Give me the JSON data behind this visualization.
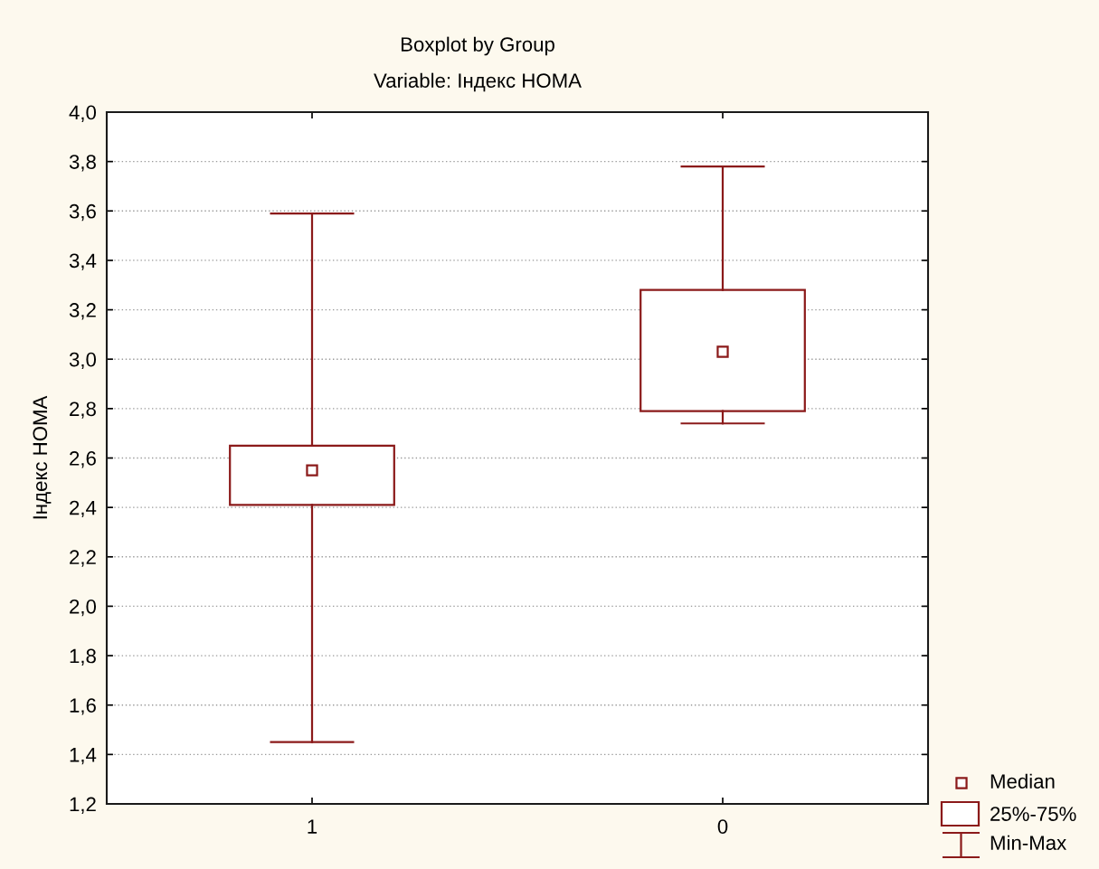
{
  "chart_data": {
    "type": "box",
    "title": "Boxplot by Group",
    "subtitle": "Variable: Індекс HOMA",
    "ylabel": "Індекс HOMA",
    "categories": [
      "1",
      "0"
    ],
    "series": [
      {
        "color": "#8b1a1a",
        "boxes": [
          {
            "low": 1.45,
            "q1": 2.41,
            "median": 2.55,
            "q3": 2.65,
            "high": 3.59
          },
          {
            "low": 2.74,
            "q1": 2.79,
            "median": 3.03,
            "q3": 3.28,
            "high": 3.78
          }
        ]
      }
    ],
    "ylim": [
      1.2,
      4.0
    ],
    "yticks": [
      {
        "value": 1.2,
        "label": "1,2"
      },
      {
        "value": 1.4,
        "label": "1,4"
      },
      {
        "value": 1.6,
        "label": "1,6"
      },
      {
        "value": 1.8,
        "label": "1,8"
      },
      {
        "value": 2.0,
        "label": "2,0"
      },
      {
        "value": 2.2,
        "label": "2,2"
      },
      {
        "value": 2.4,
        "label": "2,4"
      },
      {
        "value": 2.6,
        "label": "2,6"
      },
      {
        "value": 2.8,
        "label": "2,8"
      },
      {
        "value": 3.0,
        "label": "3,0"
      },
      {
        "value": 3.2,
        "label": "3,2"
      },
      {
        "value": 3.4,
        "label": "3,4"
      },
      {
        "value": 3.6,
        "label": "3,6"
      },
      {
        "value": 3.8,
        "label": "3,8"
      },
      {
        "value": 4.0,
        "label": "4,0"
      }
    ],
    "grid": "y",
    "marker": "square",
    "annotations": [
      "Median",
      "25%-75%",
      "Min-Max"
    ]
  }
}
